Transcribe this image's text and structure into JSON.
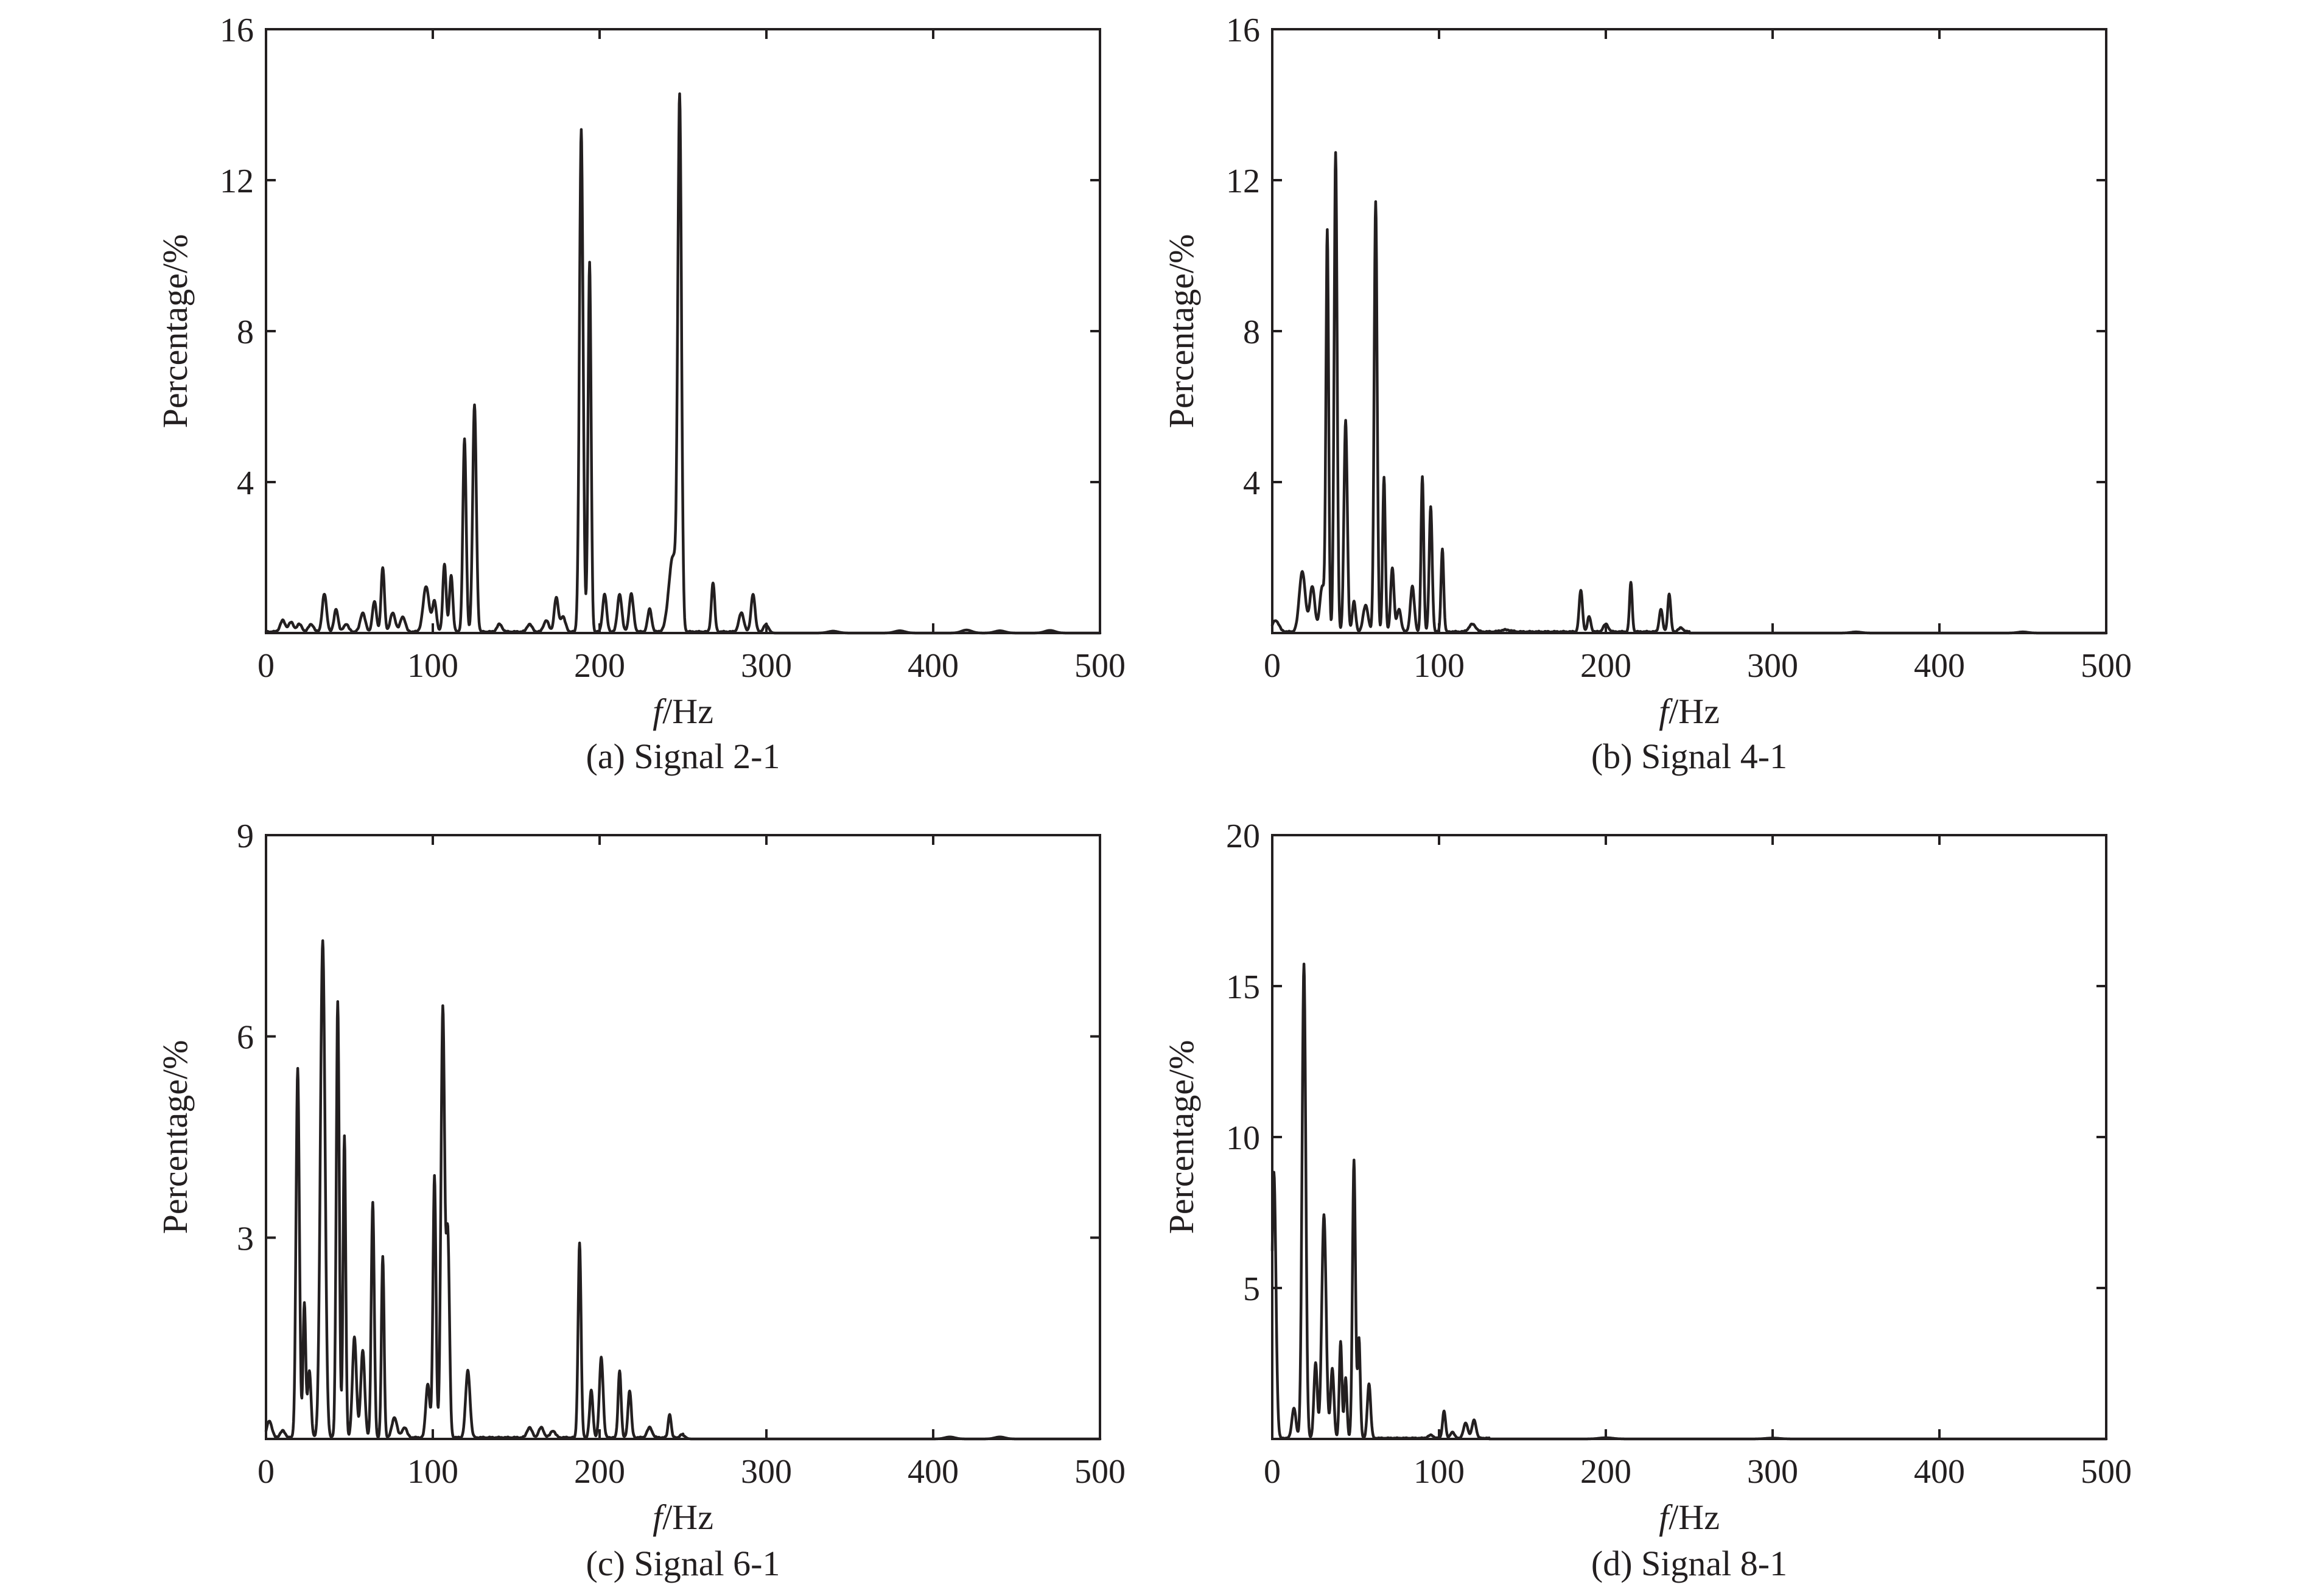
{
  "chart_data": [
    {
      "type": "line",
      "caption": "(a) Signal 2-1",
      "xlabel_italic": "f",
      "xlabel_rest": "/Hz",
      "ylabel": "Percentage/%",
      "xlim": [
        0,
        500
      ],
      "ylim": [
        0,
        16
      ],
      "xticks": [
        0,
        100,
        200,
        300,
        400,
        500
      ],
      "yticks": [
        0,
        4,
        8,
        12,
        16
      ],
      "yticklabels": [
        "",
        "4",
        "8",
        "12",
        "16"
      ],
      "baseline": 0.05,
      "noise_until": 300,
      "peaks": [
        [
          10,
          0.3,
          1.5
        ],
        [
          15,
          0.25,
          1.5
        ],
        [
          20,
          0.2,
          1.5
        ],
        [
          27,
          0.2,
          1.5
        ],
        [
          35,
          1.0,
          1.3
        ],
        [
          42,
          0.6,
          1.2
        ],
        [
          48,
          0.2,
          1.5
        ],
        [
          58,
          0.5,
          1.5
        ],
        [
          65,
          0.8,
          1.2
        ],
        [
          70,
          1.7,
          1.0
        ],
        [
          76,
          0.5,
          1.5
        ],
        [
          82,
          0.4,
          1.5
        ],
        [
          96,
          1.2,
          1.8
        ],
        [
          101,
          0.8,
          1.2
        ],
        [
          107,
          1.8,
          1.0
        ],
        [
          111,
          1.5,
          1.0
        ],
        [
          119,
          5.1,
          1.0
        ],
        [
          125,
          6.0,
          1.1
        ],
        [
          140,
          0.2,
          1.5
        ],
        [
          158,
          0.2,
          1.5
        ],
        [
          168,
          0.3,
          1.5
        ],
        [
          174,
          0.9,
          1.2
        ],
        [
          178,
          0.4,
          1.5
        ],
        [
          189,
          13.3,
          1.1
        ],
        [
          194,
          9.8,
          0.9
        ],
        [
          203,
          1.0,
          1.2
        ],
        [
          212,
          1.0,
          1.3
        ],
        [
          219,
          1.0,
          1.3
        ],
        [
          230,
          0.6,
          1.2
        ],
        [
          244,
          2.0,
          2.5
        ],
        [
          248,
          13.7,
          1.1
        ],
        [
          268,
          1.3,
          1.0
        ],
        [
          285,
          0.5,
          1.5
        ],
        [
          292,
          1.0,
          1.2
        ],
        [
          300,
          0.2,
          1.5
        ],
        [
          340,
          0.05,
          3
        ],
        [
          380,
          0.06,
          3
        ],
        [
          420,
          0.08,
          3
        ],
        [
          440,
          0.06,
          3
        ],
        [
          470,
          0.07,
          3
        ]
      ]
    },
    {
      "type": "line",
      "caption": "(b) Signal 4-1",
      "xlabel_italic": "f",
      "xlabel_rest": "/Hz",
      "ylabel": "Percentage/%",
      "xlim": [
        0,
        500
      ],
      "ylim": [
        0,
        16
      ],
      "xticks": [
        0,
        100,
        200,
        300,
        400,
        500
      ],
      "yticks": [
        0,
        4,
        8,
        12,
        16
      ],
      "yticklabels": [
        "",
        "4",
        "8",
        "12",
        "16"
      ],
      "baseline": 0.05,
      "noise_until": 250,
      "peaks": [
        [
          2,
          0.3,
          2
        ],
        [
          18,
          1.6,
          1.8
        ],
        [
          24,
          1.2,
          1.5
        ],
        [
          30,
          1.2,
          1.5
        ],
        [
          33,
          10.5,
          0.8
        ],
        [
          38,
          12.7,
          0.9
        ],
        [
          44,
          5.6,
          1.0
        ],
        [
          49,
          0.8,
          1.0
        ],
        [
          56,
          0.7,
          1.5
        ],
        [
          62,
          11.4,
          0.9
        ],
        [
          67,
          4.1,
          0.8
        ],
        [
          72,
          1.7,
          1.0
        ],
        [
          76,
          0.6,
          1.2
        ],
        [
          84,
          1.2,
          1.2
        ],
        [
          90,
          4.1,
          0.8
        ],
        [
          95,
          3.3,
          0.9
        ],
        [
          102,
          2.2,
          0.8
        ],
        [
          120,
          0.2,
          2
        ],
        [
          140,
          0.05,
          3
        ],
        [
          185,
          1.1,
          1.0
        ],
        [
          190,
          0.4,
          1.0
        ],
        [
          200,
          0.2,
          1.5
        ],
        [
          215,
          1.3,
          0.8
        ],
        [
          233,
          0.6,
          1.0
        ],
        [
          238,
          1.0,
          0.9
        ],
        [
          245,
          0.1,
          1.5
        ],
        [
          350,
          0.03,
          3
        ],
        [
          450,
          0.03,
          3
        ]
      ]
    },
    {
      "type": "line",
      "caption": "(c) Signal 6-1",
      "xlabel_italic": "f",
      "xlabel_rest": "/Hz",
      "ylabel": "Percentage/%",
      "xlim": [
        0,
        500
      ],
      "ylim": [
        0,
        9
      ],
      "xticks": [
        0,
        100,
        200,
        300,
        400,
        500
      ],
      "yticks": [
        0,
        3,
        6,
        9
      ],
      "yticklabels": [
        "",
        "3",
        "6",
        "9"
      ],
      "baseline": 0.03,
      "noise_until": 250,
      "peaks": [
        [
          2,
          0.25,
          1.5
        ],
        [
          10,
          0.1,
          1.5
        ],
        [
          19,
          5.5,
          1.0
        ],
        [
          23,
          2.0,
          0.8
        ],
        [
          26,
          1.0,
          1.0
        ],
        [
          34,
          7.4,
          1.4
        ],
        [
          43,
          6.5,
          0.9
        ],
        [
          47,
          4.5,
          0.8
        ],
        [
          53,
          1.5,
          1.2
        ],
        [
          58,
          1.3,
          1.2
        ],
        [
          64,
          3.5,
          0.9
        ],
        [
          70,
          2.7,
          0.8
        ],
        [
          77,
          0.3,
          1.5
        ],
        [
          83,
          0.15,
          1.5
        ],
        [
          97,
          0.8,
          1.2
        ],
        [
          101,
          3.9,
          0.9
        ],
        [
          106,
          6.4,
          1.1
        ],
        [
          109,
          3.0,
          1.0
        ],
        [
          121,
          1.0,
          1.3
        ],
        [
          158,
          0.15,
          1.5
        ],
        [
          165,
          0.15,
          1.5
        ],
        [
          172,
          0.1,
          1.5
        ],
        [
          188,
          2.9,
          0.9
        ],
        [
          195,
          0.7,
          1.0
        ],
        [
          201,
          1.2,
          1.1
        ],
        [
          212,
          1.0,
          0.9
        ],
        [
          218,
          0.7,
          1.0
        ],
        [
          230,
          0.15,
          1.5
        ],
        [
          242,
          0.35,
          0.9
        ],
        [
          250,
          0.05,
          1.5
        ],
        [
          410,
          0.03,
          3
        ],
        [
          440,
          0.03,
          3
        ]
      ]
    },
    {
      "type": "line",
      "caption": "(d) Signal 8-1",
      "xlabel_italic": "f",
      "xlabel_rest": "/Hz",
      "ylabel": "Percentage/%",
      "xlim": [
        0,
        500
      ],
      "ylim": [
        0,
        20
      ],
      "xticks": [
        0,
        100,
        200,
        300,
        400,
        500
      ],
      "yticks": [
        0,
        5,
        10,
        15,
        20
      ],
      "yticklabels": [
        "",
        "5",
        "10",
        "15",
        "20"
      ],
      "baseline": 0.04,
      "noise_until": 130,
      "peaks": [
        [
          1,
          8.8,
          1.2
        ],
        [
          13,
          1.0,
          1.2
        ],
        [
          19,
          15.7,
          1.1
        ],
        [
          26,
          2.5,
          1.0
        ],
        [
          31,
          7.4,
          1.3
        ],
        [
          36,
          2.3,
          1.0
        ],
        [
          41,
          3.2,
          0.8
        ],
        [
          44,
          2.0,
          0.8
        ],
        [
          49,
          9.2,
          0.9
        ],
        [
          52,
          3.3,
          0.8
        ],
        [
          58,
          1.8,
          1.0
        ],
        [
          95,
          0.1,
          1.5
        ],
        [
          103,
          0.9,
          0.9
        ],
        [
          108,
          0.2,
          1.2
        ],
        [
          116,
          0.5,
          1.3
        ],
        [
          121,
          0.6,
          1.2
        ],
        [
          200,
          0.04,
          4
        ],
        [
          300,
          0.03,
          4
        ]
      ]
    }
  ]
}
